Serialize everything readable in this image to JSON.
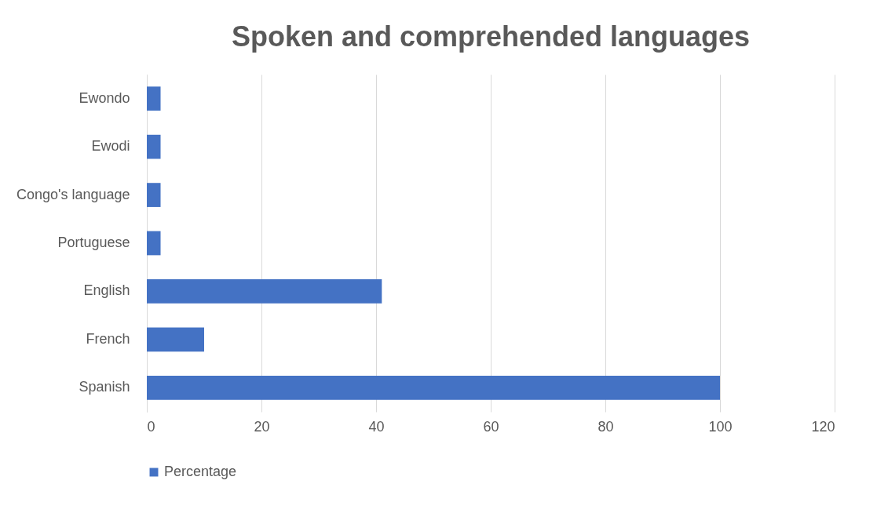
{
  "chart_data": {
    "type": "bar",
    "orientation": "horizontal",
    "title": "Spoken and comprehended languages",
    "categories": [
      "Ewondo",
      "Ewodi",
      "Congo's language",
      "Portuguese",
      "English",
      "French",
      "Spanish"
    ],
    "series": [
      {
        "name": "Percentage",
        "color": "#4472c4",
        "values": [
          2.4,
          2.4,
          2.4,
          2.4,
          41,
          10,
          100
        ]
      }
    ],
    "xlim": [
      0,
      120
    ],
    "xticks": [
      0,
      20,
      40,
      60,
      80,
      100,
      120
    ],
    "grid": "x",
    "legend": "bottom"
  }
}
